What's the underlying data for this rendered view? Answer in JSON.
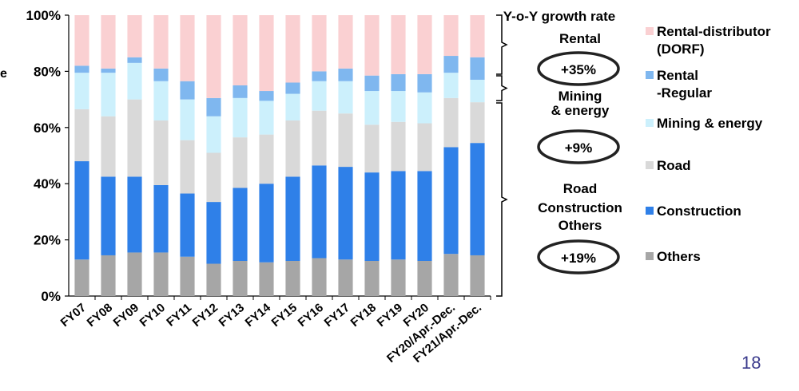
{
  "chart_data": {
    "type": "bar",
    "stacked": true,
    "categories": [
      "FY07",
      "FY08",
      "FY09",
      "FY10",
      "FY11",
      "FY12",
      "FY13",
      "FY14",
      "FY15",
      "FY16",
      "FY17",
      "FY18",
      "FY19",
      "FY20",
      "FY20/Apr.-Dec.",
      "FY21/Apr.-Dec."
    ],
    "ylim": [
      0,
      100
    ],
    "yticks": [
      "0%",
      "20%",
      "40%",
      "60%",
      "80%",
      "100%"
    ],
    "legend_position": "right",
    "series": [
      {
        "name": "Others",
        "color": "#a6a6a6",
        "values": [
          13,
          14.5,
          15.5,
          15.5,
          14,
          11.5,
          12.5,
          12,
          12.5,
          13.5,
          13,
          12.5,
          13,
          12.5,
          15,
          14.5
        ]
      },
      {
        "name": "Construction",
        "color": "#2f80e8",
        "values": [
          35,
          28,
          27,
          24,
          22.5,
          22,
          26,
          28,
          30,
          33,
          33,
          31.5,
          31.5,
          32,
          38,
          40
        ]
      },
      {
        "name": "Road",
        "color": "#d9d9d9",
        "values": [
          18.5,
          21.5,
          27.5,
          23,
          19,
          17.5,
          18,
          17.5,
          20,
          19.5,
          19,
          17,
          17.5,
          17,
          17.5,
          14.5
        ]
      },
      {
        "name": "Mining & energy",
        "color": "#ccf0fc",
        "values": [
          13,
          15.5,
          13,
          14,
          14.5,
          13,
          14,
          12,
          9.5,
          10.5,
          11.5,
          12,
          11,
          11,
          9,
          8
        ]
      },
      {
        "name": "Rental\n-Regular",
        "color": "#7fb7ef",
        "values": [
          2.5,
          1.5,
          2,
          4.5,
          6.5,
          6.5,
          4.5,
          3.5,
          4,
          3.5,
          4.5,
          5.5,
          6,
          6.5,
          6,
          8
        ]
      },
      {
        "name": "Rental-distributor\n(DORF)",
        "color": "#fad0d2",
        "values": [
          18,
          19,
          15,
          19,
          23.5,
          29.5,
          25,
          27,
          24,
          20,
          19,
          21.5,
          21,
          21,
          14.5,
          15
        ]
      }
    ]
  },
  "annotations": {
    "growth_title": "Y-o-Y growth rate",
    "groups": [
      {
        "label": "Rental",
        "rate": "+35%"
      },
      {
        "label": "Mining\n& energy",
        "rate": "+9%"
      },
      {
        "label": "Road\nConstruction\nOthers",
        "rate": "+19%"
      }
    ]
  },
  "y_title_fragment": "e",
  "page_number": "18"
}
